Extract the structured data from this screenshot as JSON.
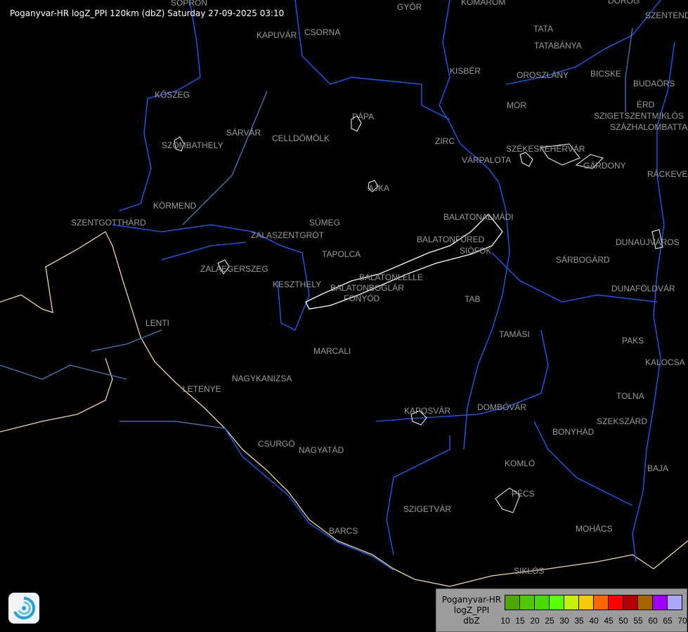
{
  "title": "Poganyvar-HR logZ_PPI 120km (dbZ) Saturday 27-09-2025 03:10",
  "colors": {
    "background": "#000000",
    "river": "#1f5fff",
    "border": "#f0d8a0",
    "lake": "#ffffff",
    "label": "#9a9a9a"
  },
  "cities": [
    "SOPRON",
    "GYŐR",
    "KOMÁROM",
    "DOROG",
    "SZENTENDRE",
    "KAPUVÁR",
    "CSORNA",
    "TATA",
    "TATABÁNYA",
    "KISBÉR",
    "OROSZLÁNY",
    "BICSKE",
    "BUDAÖRS",
    "ÉRD",
    "SZIGETSZENTMIKLÓS",
    "SZÁZHALOMBATTA",
    "KŐSZEG",
    "PÁPA",
    "MÓR",
    "SZOMBATHELY",
    "SÁRVÁR",
    "CELLDÖMÖLK",
    "ZIRC",
    "VÁRPALOTA",
    "SZÉKESFEHÉRVÁR",
    "GÁRDONY",
    "RÁCKEVE",
    "AJKA",
    "KÖRMEND",
    "BALATONALMÁDI",
    "SZENTGOTTHÁRD",
    "SÜMEG",
    "ZALASZENTGRÓT",
    "BALATONFÜRED",
    "SIÓFOK",
    "DUNAÚJVÁROS",
    "TAPOLCA",
    "ZALAEGERSZEG",
    "SÁRBOGÁRD",
    "KESZTHELY",
    "BALATONLELLE",
    "BALATONBOGLÁR",
    "FONYÓD",
    "DUNAFÖLDVÁR",
    "TAB",
    "LENTI",
    "TAMÁSI",
    "PAKS",
    "MARCALI",
    "KALOCSA",
    "LETENYE",
    "NAGYKANIZSA",
    "TOLNA",
    "DOMBÓVÁR",
    "KAPOSVÁR",
    "SZEKSZÁRD",
    "BONYHÁD",
    "CSURGÓ",
    "NAGYATÁD",
    "KOMLÓ",
    "BAJA",
    "PÉCS",
    "SZIGETVÁR",
    "MOHÁCS",
    "BARCS",
    "SIKLÓS"
  ],
  "legend": {
    "line1": "Poganyvar-HR",
    "line2": "logZ_PPI",
    "line3": "dbZ",
    "ticks": [
      "10",
      "15",
      "20",
      "25",
      "30",
      "35",
      "40",
      "45",
      "50",
      "55",
      "60",
      "65",
      "70"
    ],
    "colors": [
      "#4ea800",
      "#50c800",
      "#46dc00",
      "#5aff00",
      "#c8ee00",
      "#f5c800",
      "#ff6400",
      "#ff0000",
      "#b40000",
      "#a86400",
      "#a000ff",
      "#a8a8ff"
    ]
  }
}
